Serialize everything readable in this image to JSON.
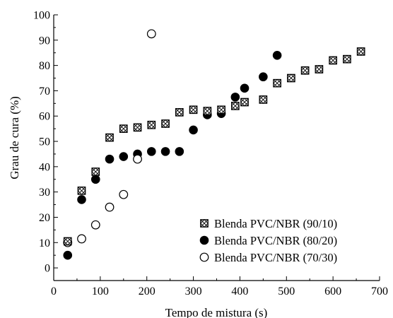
{
  "chart_data": {
    "type": "scatter",
    "xlabel": "Tempo de mistura (s)",
    "ylabel": "Grau de cura (%)",
    "xlim": [
      0,
      700
    ],
    "ylim": [
      -5,
      100
    ],
    "xticks": [
      "0",
      "100",
      "200",
      "300",
      "400",
      "500",
      "600",
      "700"
    ],
    "yticks": [
      "0",
      "10",
      "20",
      "30",
      "40",
      "50",
      "60",
      "70",
      "80",
      "90",
      "100"
    ],
    "grid": false,
    "legend_position": "bottom-right",
    "series": [
      {
        "name": "Blenda PVC/NBR (90/10)",
        "marker": "boxed-x",
        "x": [
          30,
          60,
          90,
          120,
          150,
          180,
          210,
          240,
          270,
          300,
          330,
          360,
          390,
          410,
          450,
          480,
          510,
          540,
          570,
          600,
          630,
          660
        ],
        "y": [
          10.5,
          30.5,
          38,
          51.5,
          55,
          55.5,
          56.5,
          57,
          61.5,
          62.5,
          62,
          62.5,
          64,
          65.5,
          66.5,
          73,
          75,
          78,
          78.5,
          82,
          82.5,
          85.5
        ]
      },
      {
        "name": "Blenda PVC/NBR (80/20)",
        "marker": "filled-circle",
        "x": [
          30,
          60,
          90,
          120,
          150,
          180,
          210,
          240,
          270,
          300,
          330,
          360,
          390,
          410,
          450,
          480
        ],
        "y": [
          5,
          27,
          35,
          43,
          44,
          45,
          46,
          46,
          46,
          54.5,
          60.5,
          61,
          67.5,
          71,
          75.5,
          84
        ]
      },
      {
        "name": "Blenda PVC/NBR (70/30)",
        "marker": "open-circle",
        "x": [
          30,
          60,
          90,
          120,
          150,
          180,
          210
        ],
        "y": [
          10,
          11.5,
          17,
          24,
          29,
          43,
          92.5
        ]
      }
    ]
  },
  "colors": {
    "ink": "#000000",
    "background": "#ffffff"
  }
}
